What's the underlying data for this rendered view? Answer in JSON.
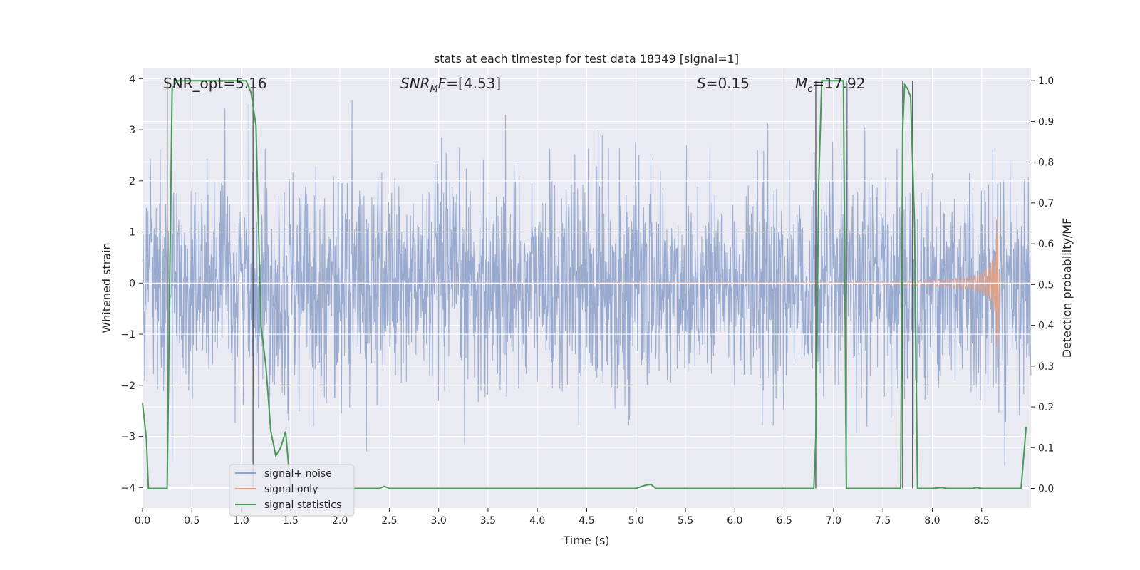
{
  "chart_data": {
    "type": "line",
    "title": "stats at each timestep for test data 18349 [signal=1]",
    "xlabel": "Time (s)",
    "ylabel_left": "Whitened strain",
    "ylabel_right": "Detection probability/MF",
    "xlim": [
      0.0,
      9.0
    ],
    "ylim_left": [
      -4.4,
      4.2
    ],
    "ylim_right": [
      -0.048,
      1.03
    ],
    "x_ticks": [
      "0.0",
      "0.5",
      "1.0",
      "1.5",
      "2.0",
      "2.5",
      "3.0",
      "3.5",
      "4.0",
      "4.5",
      "5.0",
      "5.5",
      "6.0",
      "6.5",
      "7.0",
      "7.5",
      "8.0",
      "8.5"
    ],
    "y_ticks_left": [
      "−4",
      "−3",
      "−2",
      "−1",
      "0",
      "1",
      "2",
      "3",
      "4"
    ],
    "y_ticks_right": [
      "0.0",
      "0.1",
      "0.2",
      "0.3",
      "0.4",
      "0.5",
      "0.6",
      "0.7",
      "0.8",
      "0.9",
      "1.0"
    ],
    "grid": true,
    "annotations": {
      "snr_opt": "SNR_opt=5.16",
      "snr_mf_label": "SNR",
      "snr_mf_sub": "M",
      "snr_mf_suffix": "F",
      "snr_mf_value": "=[4.53]",
      "s_label": "S",
      "s_value": "=0.15",
      "mc_label": "M",
      "mc_sub": "c",
      "mc_value": "=17.92"
    },
    "series": [
      {
        "name": "signal+ noise",
        "color": "#8fa3cc",
        "type": "noise_strain",
        "approx_range": [
          -4.0,
          3.9
        ]
      },
      {
        "name": "signal only",
        "color": "#e69f80",
        "type": "chirp",
        "start": 4.5,
        "end": 8.68,
        "peak_amplitude": 1.3
      },
      {
        "name": "signal statistics",
        "color": "#4a9a57",
        "axis": "right",
        "x": [
          0.0,
          0.04,
          0.06,
          0.25,
          0.3,
          0.35,
          0.4,
          0.8,
          0.95,
          1.05,
          1.1,
          1.15,
          1.2,
          1.25,
          1.3,
          1.35,
          1.4,
          1.45,
          1.5,
          2.0,
          2.4,
          2.45,
          2.5,
          3.0,
          3.5,
          4.0,
          4.5,
          5.0,
          5.1,
          5.15,
          5.2,
          5.25,
          5.5,
          6.0,
          6.5,
          6.8,
          6.82,
          6.85,
          6.88,
          6.95,
          7.0,
          7.05,
          7.1,
          7.13,
          7.18,
          7.25,
          7.3,
          7.5,
          7.68,
          7.7,
          7.72,
          7.75,
          7.78,
          7.82,
          7.85,
          7.9,
          8.0,
          8.1,
          8.15,
          8.2,
          8.4,
          8.45,
          8.5,
          8.9,
          8.95
        ],
        "y": [
          0.21,
          0.12,
          0.0,
          0.0,
          0.98,
          1.0,
          1.0,
          1.0,
          1.0,
          1.0,
          0.97,
          0.89,
          0.4,
          0.3,
          0.14,
          0.08,
          0.1,
          0.14,
          0.0,
          0.0,
          0.0,
          0.005,
          0.0,
          0.0,
          0.0,
          0.0,
          0.0,
          0.0,
          0.008,
          0.01,
          0.0,
          0.0,
          0.0,
          0.0,
          0.0,
          0.0,
          0.12,
          0.75,
          1.0,
          1.0,
          1.0,
          1.0,
          1.0,
          0.0,
          0.0,
          0.0,
          0.0,
          0.0,
          0.0,
          0.88,
          0.99,
          0.98,
          0.96,
          0.65,
          0.0,
          0.0,
          0.0,
          0.002,
          0.0,
          0.0,
          0.0,
          0.002,
          0.0,
          0.0,
          0.15
        ]
      }
    ],
    "vertical_lines": [
      0.25,
      1.12,
      6.82,
      7.13,
      7.7,
      7.8
    ],
    "legend": {
      "position": "lower-left",
      "entries": [
        "signal+ noise",
        "signal only",
        "signal statistics"
      ]
    }
  }
}
